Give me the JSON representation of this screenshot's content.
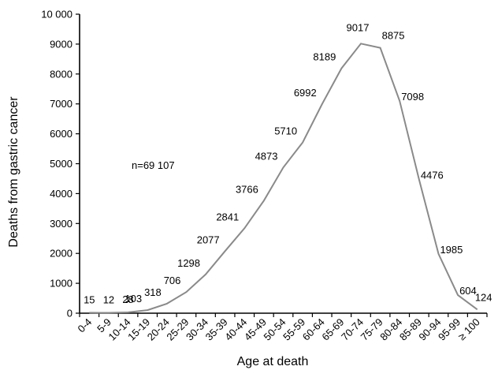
{
  "chart_data": {
    "type": "line",
    "xlabel": "Age at death",
    "ylabel": "Deaths from gastric cancer",
    "annotation": "n=69 107",
    "ylim": [
      0,
      10000
    ],
    "yticks": [
      0,
      1000,
      2000,
      3000,
      4000,
      5000,
      6000,
      7000,
      8000,
      9000,
      10000
    ],
    "ytick_labels": [
      "0",
      "1000",
      "2000",
      "3000",
      "4000",
      "5000",
      "6000",
      "7000",
      "8000",
      "9000",
      "10 000"
    ],
    "categories": [
      "0-4",
      "5-9",
      "10-14",
      "15-19",
      "20-24",
      "25-29",
      "30-34",
      "35-39",
      "40-44",
      "45-49",
      "50-54",
      "55-59",
      "60-64",
      "65-69",
      "70-74",
      "75-79",
      "80-84",
      "85-89",
      "90-94",
      "95-99",
      "≥ 100"
    ],
    "values": [
      15,
      12,
      28,
      103,
      318,
      706,
      1298,
      2077,
      2841,
      3766,
      4873,
      5710,
      6992,
      8189,
      9017,
      8875,
      7098,
      4476,
      1985,
      604,
      124
    ],
    "value_labels": [
      "15",
      "12",
      "28",
      "103",
      "318",
      "706",
      "1298",
      "2077",
      "2841",
      "3766",
      "4873",
      "5710",
      "6992",
      "8189",
      "9017",
      "8875",
      "7098",
      "4476",
      "1985",
      "604",
      "124"
    ],
    "line_color": "#8a8a8a",
    "grid": false,
    "legend": "none"
  }
}
